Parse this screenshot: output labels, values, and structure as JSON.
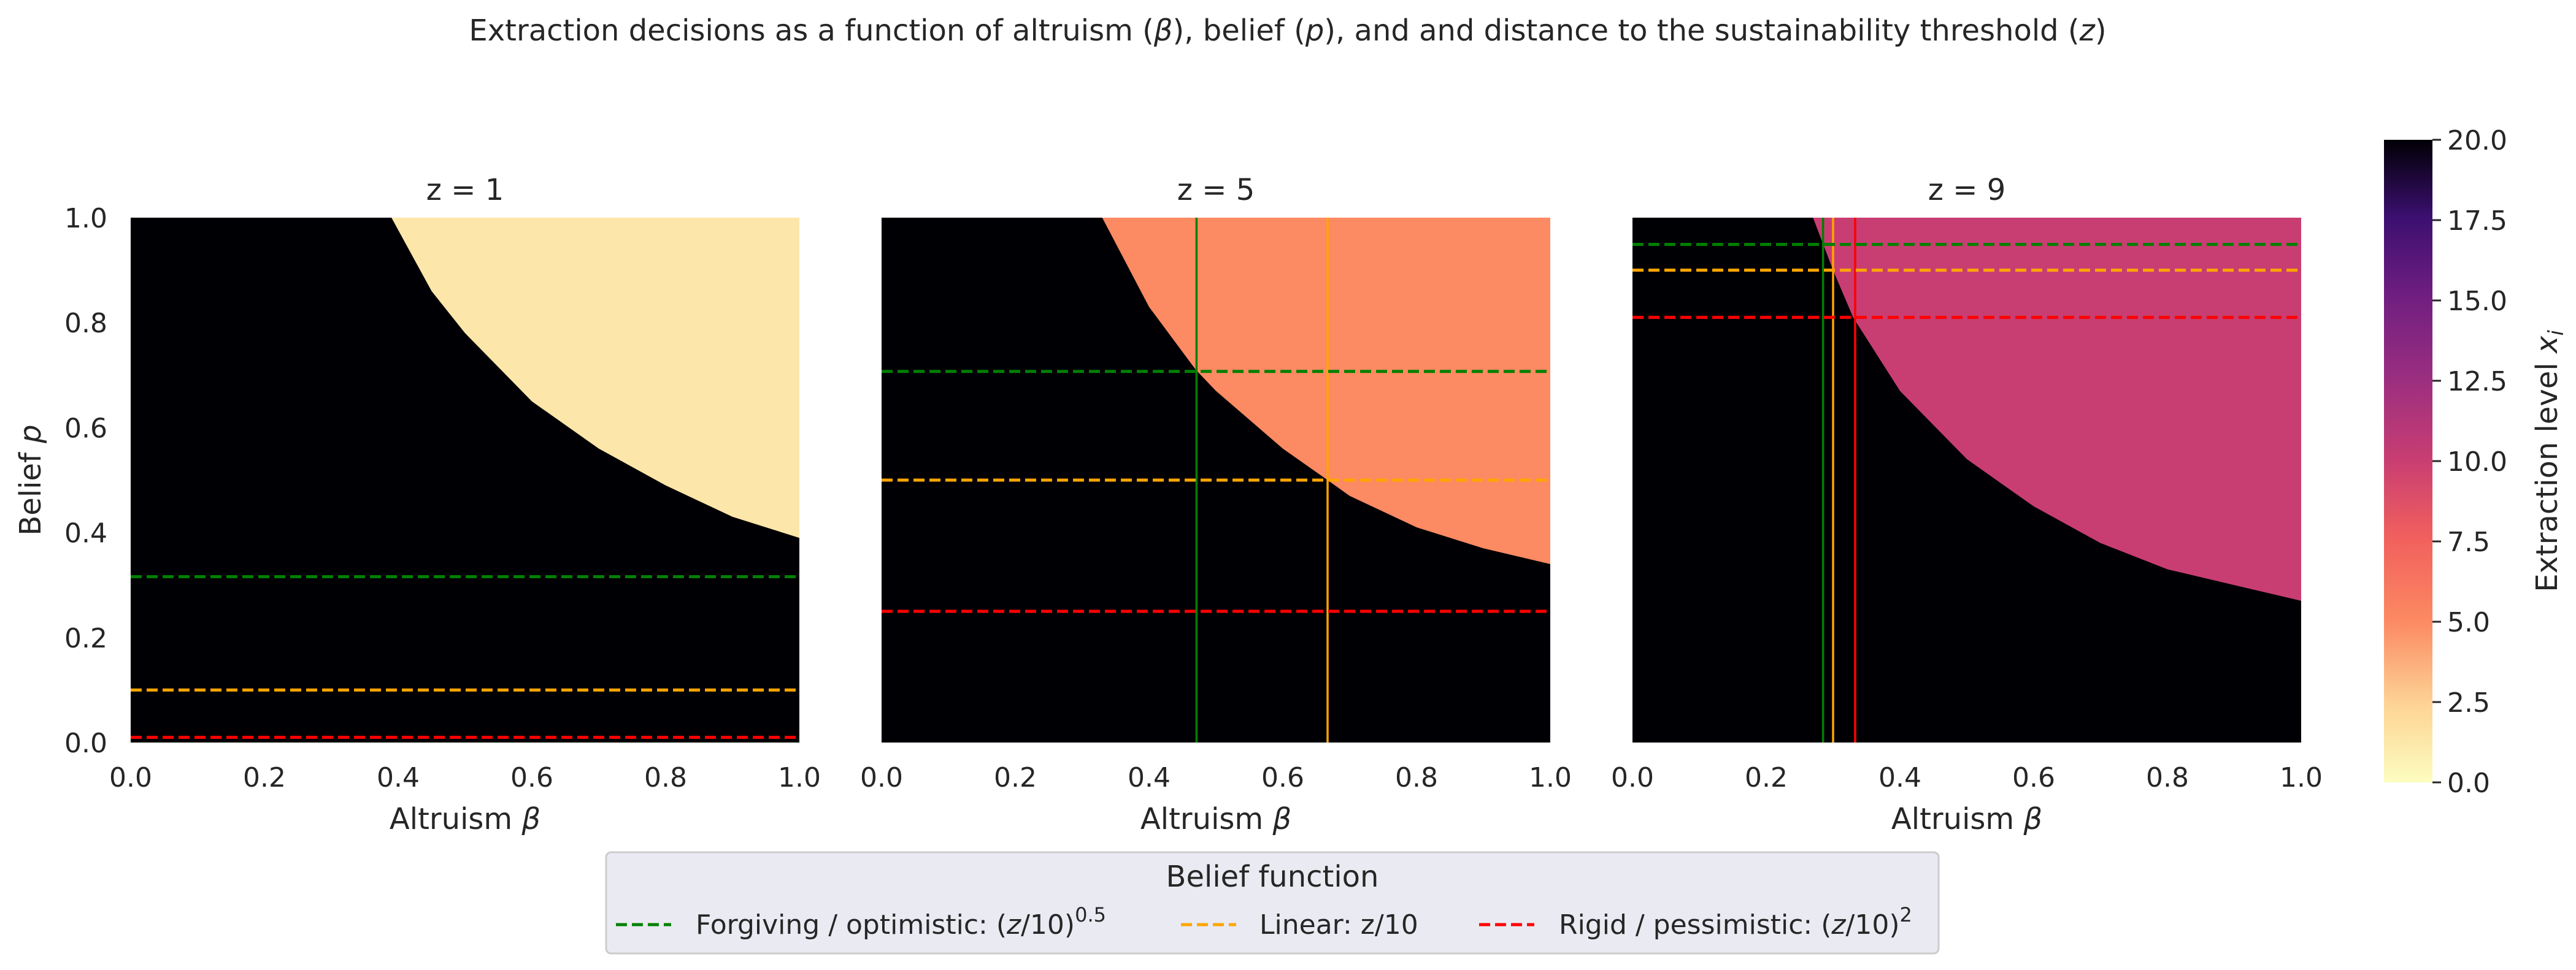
{
  "figure": {
    "suptitle_pre": "Extraction decisions as a function of altruism (",
    "suptitle_beta": "β",
    "suptitle_mid1": "), belief (",
    "suptitle_p": "p",
    "suptitle_mid2": "), and and distance to the sustainability threshold (",
    "suptitle_z": "z",
    "suptitle_post": ")"
  },
  "colors": {
    "black_region": "#000004",
    "panel_fill": [
      "#fce6a9",
      "#fc8a62",
      "#c93e72"
    ],
    "optimistic": "#008000",
    "linear": "#ffa500",
    "pessimistic": "#ff0000",
    "colormap": "magma_r"
  },
  "chart_data": {
    "type": "heatmap",
    "xlabel_text": "Altruism ",
    "xlabel_sym": "β",
    "ylabel_text": "Belief ",
    "ylabel_sym": "p",
    "xlim": [
      0,
      1
    ],
    "ylim": [
      0,
      1
    ],
    "x_ticks": [
      "0.0",
      "0.2",
      "0.4",
      "0.6",
      "0.8",
      "1.0"
    ],
    "y_ticks": [
      "0.0",
      "0.2",
      "0.4",
      "0.6",
      "0.8",
      "1.0"
    ],
    "panels": [
      {
        "title": "z = 1",
        "z": 1,
        "extraction_level_high": 20,
        "extraction_level_low": 1,
        "boundary": [
          [
            0.39,
            1.0
          ],
          [
            0.45,
            0.86
          ],
          [
            0.5,
            0.78
          ],
          [
            0.6,
            0.65
          ],
          [
            0.7,
            0.56
          ],
          [
            0.8,
            0.49
          ],
          [
            0.9,
            0.43
          ],
          [
            1.0,
            0.39
          ]
        ],
        "belief_hlines": [
          0.316,
          0.1,
          0.01
        ],
        "beta_vlines": []
      },
      {
        "title": "z = 5",
        "z": 5,
        "extraction_level_high": 20,
        "extraction_level_low": 5,
        "boundary": [
          [
            0.33,
            1.0
          ],
          [
            0.4,
            0.83
          ],
          [
            0.47,
            0.71
          ],
          [
            0.5,
            0.67
          ],
          [
            0.6,
            0.56
          ],
          [
            0.667,
            0.5
          ],
          [
            0.7,
            0.47
          ],
          [
            0.8,
            0.41
          ],
          [
            0.9,
            0.37
          ],
          [
            1.0,
            0.34
          ]
        ],
        "belief_hlines": [
          0.707,
          0.5,
          0.25
        ],
        "beta_vlines": [
          0.471,
          0.667
        ]
      },
      {
        "title": "z = 9",
        "z": 9,
        "extraction_level_high": 20,
        "extraction_level_low": 9,
        "boundary": [
          [
            0.27,
            1.0
          ],
          [
            0.3,
            0.9
          ],
          [
            0.33,
            0.81
          ],
          [
            0.4,
            0.67
          ],
          [
            0.5,
            0.54
          ],
          [
            0.6,
            0.45
          ],
          [
            0.7,
            0.38
          ],
          [
            0.8,
            0.33
          ],
          [
            0.9,
            0.3
          ],
          [
            1.0,
            0.27
          ]
        ],
        "belief_hlines": [
          0.949,
          0.9,
          0.81
        ],
        "beta_vlines": [
          0.285,
          0.3,
          0.333
        ]
      }
    ],
    "colorbar": {
      "label_text": "Extraction level ",
      "label_sym": "x",
      "label_sub": "i",
      "range": [
        0,
        20
      ],
      "ticks": [
        "0.0",
        "2.5",
        "5.0",
        "7.5",
        "10.0",
        "12.5",
        "15.0",
        "17.5",
        "20.0"
      ]
    },
    "legend": {
      "title": "Belief function",
      "placement": "bottom-center",
      "entries": [
        {
          "key": "optimistic",
          "pre": "Forgiving / optimistic: (",
          "sym": "z",
          "post": "/10)",
          "sup": "0.5"
        },
        {
          "key": "linear",
          "pre": "Linear: z/10",
          "sym": "",
          "post": "",
          "sup": ""
        },
        {
          "key": "pessimistic",
          "pre": "Rigid / pessimistic: (",
          "sym": "z",
          "post": "/10)",
          "sup": "2"
        }
      ]
    }
  }
}
